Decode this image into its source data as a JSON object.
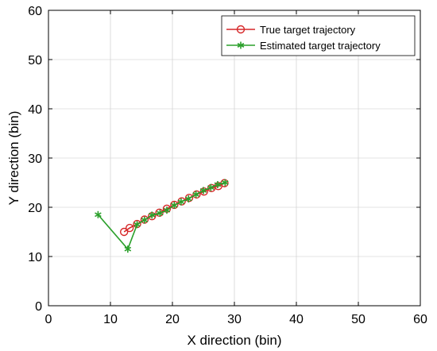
{
  "chart_data": {
    "type": "line",
    "title": "",
    "xlabel": "X direction (bin)",
    "ylabel": "Y direction (bin)",
    "xlim": [
      0,
      60
    ],
    "ylim": [
      0,
      60
    ],
    "xticks": [
      0,
      10,
      20,
      30,
      40,
      50,
      60
    ],
    "yticks": [
      0,
      10,
      20,
      30,
      40,
      50,
      60
    ],
    "legend_position": "top-right",
    "series": [
      {
        "name": "True target trajectory",
        "color": "#d62728",
        "marker": "circle",
        "x": [
          12.2,
          13.1,
          14.3,
          15.5,
          16.7,
          17.9,
          19.1,
          20.3,
          21.5,
          22.7,
          23.9,
          25.1,
          26.3,
          27.4,
          28.4
        ],
        "y": [
          15.0,
          15.8,
          16.6,
          17.5,
          18.2,
          18.9,
          19.7,
          20.5,
          21.2,
          21.9,
          22.6,
          23.2,
          23.9,
          24.3,
          24.9
        ]
      },
      {
        "name": "Estimated target trajectory",
        "color": "#2ca02c",
        "marker": "asterisk",
        "x": [
          8.0,
          12.8,
          14.3,
          15.5,
          16.7,
          18.0,
          19.1,
          20.3,
          21.4,
          22.6,
          23.8,
          25.0,
          26.2,
          27.3,
          28.5
        ],
        "y": [
          18.5,
          11.5,
          16.5,
          17.4,
          18.4,
          18.8,
          19.4,
          20.4,
          21.1,
          21.7,
          22.6,
          23.4,
          24.0,
          24.6,
          25.0
        ]
      }
    ]
  }
}
